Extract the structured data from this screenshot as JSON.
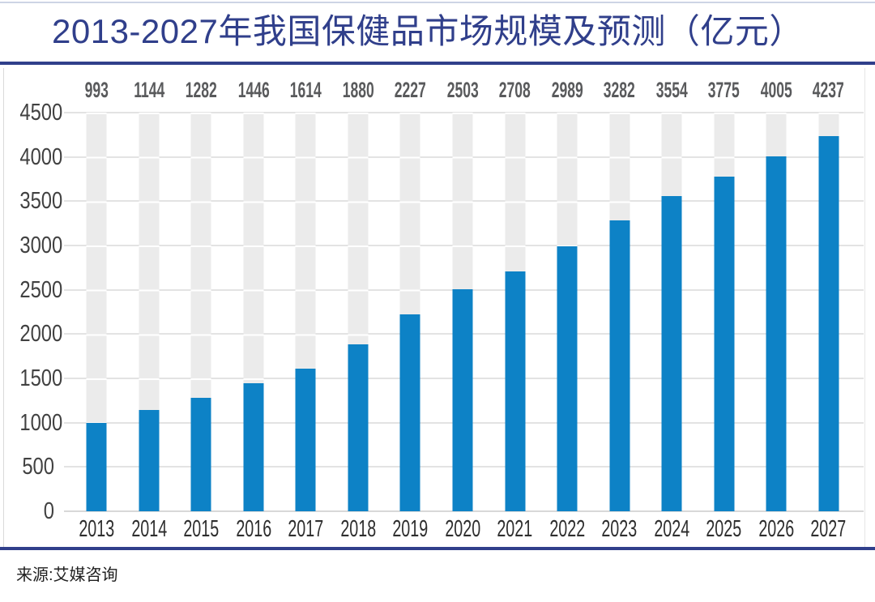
{
  "page": {
    "title": "2013-2027年我国保健品市场规模及预测（亿元）",
    "source_label": "来源:艾媒咨询"
  },
  "colors": {
    "title_navy": "#303f8b",
    "rule_navy": "#303f8b",
    "top_hairline": "#cdd4e5",
    "bar_blue": "#0d82c6",
    "band_gray": "#ebebeb",
    "gridline_gray": "#e3e3e3",
    "axis_line_gray": "#d8d8d8",
    "value_label_gray": "#595a5c",
    "ytick_gray": "#414141",
    "year_label_dark": "#2e2e2e"
  },
  "chart_data": {
    "type": "bar",
    "title": "2013-2027年我国保健品市场规模及预测（亿元）",
    "categories": [
      "2013",
      "2014",
      "2015",
      "2016",
      "2017",
      "2018",
      "2019",
      "2020",
      "2021",
      "2022",
      "2023",
      "2024",
      "2025",
      "2026",
      "2027"
    ],
    "values": [
      993,
      1144,
      1282,
      1446,
      1614,
      1880,
      2227,
      2503,
      2708,
      2989,
      3282,
      3554,
      3775,
      4005,
      4237
    ],
    "xlabel": "",
    "ylabel": "",
    "ylim": [
      0,
      4500
    ],
    "ytick_step": 500,
    "yticks": [
      0,
      500,
      1000,
      1500,
      2000,
      2500,
      3000,
      3500,
      4000,
      4500
    ],
    "grid": "horizontal",
    "background_column_bands": true,
    "data_labels_position": "above plot top",
    "legend": "none",
    "source": "来源:艾媒咨询"
  }
}
